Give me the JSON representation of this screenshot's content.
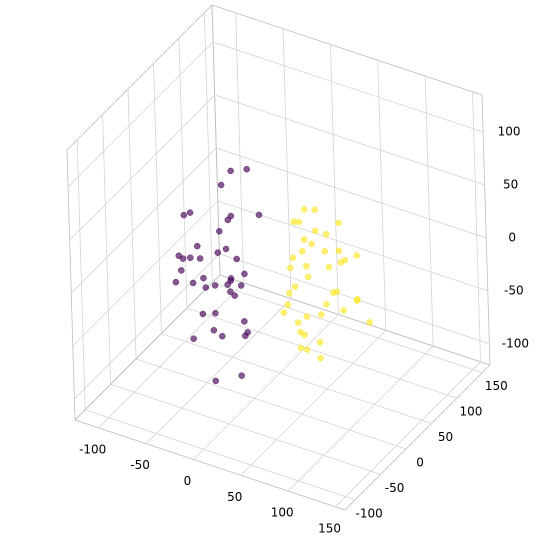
{
  "chart_data": {
    "type": "scatter3d",
    "xlim": [
      -125,
      160
    ],
    "ylim": [
      -120,
      165
    ],
    "zlim": [
      -120,
      135
    ],
    "xticks": [
      -100,
      -50,
      0,
      50,
      100,
      150
    ],
    "yticks": [
      -100,
      -50,
      0,
      50,
      100,
      150
    ],
    "zticks": [
      -100,
      -50,
      0,
      50,
      100
    ],
    "grid": true,
    "series": [
      {
        "color": "#440154",
        "x": [
          -20,
          -45,
          -60,
          -30,
          -10,
          5,
          -35,
          -50,
          -25,
          -15,
          0,
          -40,
          -55,
          -5,
          10,
          -30,
          -20,
          -45,
          -65,
          -10,
          -35,
          -25,
          -50,
          15,
          -15,
          -40,
          0,
          -20,
          -30,
          -55,
          -5,
          -35,
          20,
          -45,
          -10,
          -25,
          -60,
          -15,
          5,
          -30
        ],
        "y": [
          -10,
          -30,
          -5,
          -40,
          -20,
          10,
          -50,
          -25,
          0,
          -35,
          -15,
          20,
          -45,
          -5,
          -30,
          15,
          -60,
          -10,
          -20,
          -40,
          5,
          -25,
          -35,
          -50,
          25,
          -15,
          -40,
          -5,
          -20,
          -30,
          -10,
          30,
          -45,
          -20,
          -55,
          10,
          -25,
          -5,
          -35,
          -15
        ],
        "z": [
          20,
          -10,
          40,
          -30,
          0,
          50,
          -50,
          10,
          -20,
          30,
          -40,
          60,
          -5,
          -60,
          15,
          -25,
          35,
          -15,
          5,
          -45,
          25,
          -35,
          55,
          -70,
          80,
          -20,
          0,
          45,
          -55,
          10,
          -10,
          70,
          -30,
          20,
          -80,
          40,
          -5,
          -25,
          30,
          -15
        ]
      },
      {
        "color": "#fde725",
        "x": [
          30,
          50,
          70,
          40,
          20,
          60,
          80,
          35,
          45,
          55,
          25,
          65,
          90,
          40,
          30,
          50,
          75,
          60,
          20,
          45,
          35,
          70,
          55,
          85,
          25,
          40,
          60,
          50,
          30,
          100,
          45,
          65,
          35,
          55,
          80,
          25,
          50,
          40,
          70,
          60
        ],
        "y": [
          30,
          20,
          50,
          10,
          40,
          35,
          60,
          25,
          45,
          5,
          55,
          30,
          40,
          20,
          50,
          15,
          35,
          65,
          25,
          45,
          10,
          55,
          30,
          50,
          40,
          20,
          35,
          60,
          15,
          45,
          25,
          40,
          55,
          30,
          20,
          50,
          10,
          35,
          45,
          25
        ],
        "z": [
          -20,
          0,
          -40,
          20,
          -10,
          -30,
          10,
          -50,
          30,
          -60,
          0,
          40,
          -20,
          -70,
          15,
          -35,
          25,
          -5,
          -45,
          50,
          -15,
          5,
          -80,
          -25,
          35,
          -55,
          20,
          -10,
          -30,
          -40,
          60,
          -20,
          10,
          -65,
          -5,
          30,
          -50,
          0,
          45,
          -35
        ]
      }
    ]
  }
}
